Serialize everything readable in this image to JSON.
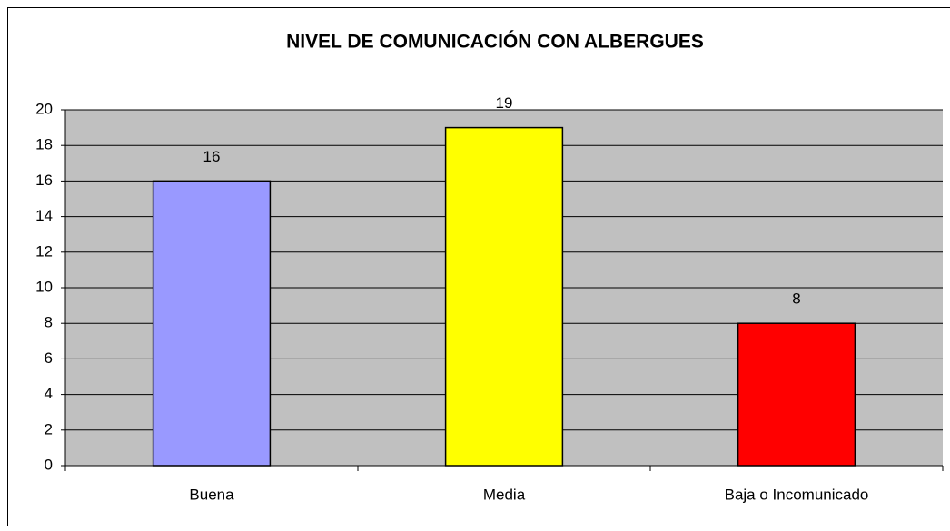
{
  "chart_data": {
    "type": "bar",
    "title": "NIVEL DE COMUNICACIÓN CON ALBERGUES",
    "categories": [
      "Buena",
      "Media",
      "Baja o Incomunicado"
    ],
    "values": [
      16,
      19,
      8
    ],
    "colors": [
      "#9999ff",
      "#ffff00",
      "#ff0000"
    ],
    "ylim": [
      0,
      20
    ],
    "yticks": [
      0,
      2,
      4,
      6,
      8,
      10,
      12,
      14,
      16,
      18,
      20
    ],
    "grid": true
  }
}
